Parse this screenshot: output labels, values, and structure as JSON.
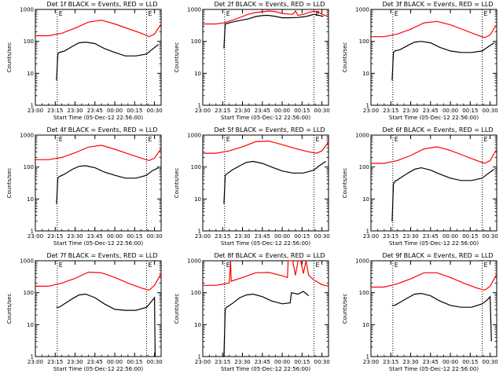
{
  "chart_data": [
    {
      "type": "line",
      "title": "Det 1f BLACK = Events, RED = LLD",
      "xlabel": "Start Time (05-Dec-12 22:56:00)",
      "ylabel": "Counts/sec",
      "x_ticks": [
        "23:00",
        "23:15",
        "23:30",
        "23:45",
        "00:00",
        "00:15",
        "00:30"
      ],
      "y_ticks": [
        "1",
        "10",
        "100",
        "1000"
      ],
      "xlim": [
        "23:00",
        "00:35"
      ],
      "ylim": [
        1,
        1000
      ],
      "y_scale": "log",
      "x_unit": "minutes after 23:00",
      "markers": [
        {
          "label": "E",
          "x": 16.5
        },
        {
          "label": "E",
          "x": 84
        }
      ],
      "series": [
        {
          "role": "LLD",
          "color": "#ff0000",
          "x": [
            0,
            10,
            20,
            30,
            40,
            50,
            60,
            70,
            80,
            86,
            90,
            95
          ],
          "y": [
            150,
            150,
            180,
            260,
            400,
            460,
            350,
            250,
            180,
            140,
            170,
            350
          ]
        },
        {
          "role": "Events",
          "color": "#000000",
          "x": [
            16,
            17,
            18,
            22,
            28,
            33,
            38,
            45,
            52,
            60,
            68,
            76,
            84,
            88,
            93
          ],
          "y": [
            6,
            40,
            45,
            50,
            70,
            90,
            95,
            85,
            60,
            45,
            35,
            35,
            40,
            55,
            80
          ]
        }
      ]
    },
    {
      "type": "line",
      "title": "Det 2f BLACK = Events, RED = LLD",
      "xlabel": "Start Time (05-Dec-12 22:56:00)",
      "ylabel": "Counts/sec",
      "x_ticks": [
        "23:00",
        "23:15",
        "23:30",
        "23:45",
        "00:00",
        "00:15",
        "00:30"
      ],
      "y_ticks": [
        "1",
        "10",
        "100",
        "1000"
      ],
      "xlim": [
        "23:00",
        "00:35"
      ],
      "ylim": [
        1,
        1000
      ],
      "y_scale": "log",
      "x_unit": "minutes after 23:00",
      "markers": [
        {
          "label": "E",
          "x": 16.5
        },
        {
          "label": "E",
          "x": 84
        }
      ],
      "series": [
        {
          "role": "LLD",
          "color": "#ff0000",
          "x": [
            0,
            10,
            16,
            20,
            25,
            30,
            34,
            40,
            46,
            50,
            55,
            60,
            64,
            68,
            70,
            72,
            76,
            80,
            84,
            88,
            91,
            95
          ],
          "y": [
            350,
            350,
            380,
            430,
            500,
            600,
            700,
            800,
            850,
            900,
            850,
            750,
            720,
            700,
            900,
            650,
            700,
            800,
            880,
            800,
            680,
            600
          ]
        },
        {
          "role": "Events",
          "color": "#000000",
          "x": [
            16,
            17,
            22,
            28,
            34,
            40,
            46,
            50,
            55,
            60,
            66,
            72,
            78,
            84,
            88,
            91
          ],
          "y": [
            60,
            350,
            400,
            450,
            500,
            600,
            650,
            650,
            600,
            550,
            550,
            560,
            600,
            700,
            650,
            600
          ]
        }
      ]
    },
    {
      "type": "line",
      "title": "Det 3f BLACK = Events, RED = LLD",
      "xlabel": "Start Time (05-Dec-12 22:56:00)",
      "ylabel": "Counts/sec",
      "x_ticks": [
        "23:00",
        "23:15",
        "23:30",
        "23:45",
        "00:00",
        "00:15",
        "00:30"
      ],
      "y_ticks": [
        "1",
        "10",
        "100",
        "1000"
      ],
      "xlim": [
        "23:00",
        "00:35"
      ],
      "ylim": [
        1,
        1000
      ],
      "y_scale": "log",
      "x_unit": "minutes after 23:00",
      "markers": [
        {
          "label": "E",
          "x": 16.5
        },
        {
          "label": "E",
          "x": 84
        }
      ],
      "series": [
        {
          "role": "LLD",
          "color": "#ff0000",
          "x": [
            0,
            10,
            20,
            30,
            40,
            50,
            60,
            70,
            80,
            86,
            90,
            95
          ],
          "y": [
            140,
            140,
            170,
            240,
            380,
            420,
            330,
            230,
            160,
            130,
            160,
            340
          ]
        },
        {
          "role": "Events",
          "color": "#000000",
          "x": [
            16,
            17,
            18,
            22,
            28,
            33,
            38,
            45,
            52,
            60,
            68,
            76,
            84,
            88,
            93
          ],
          "y": [
            6,
            45,
            50,
            55,
            75,
            95,
            100,
            90,
            65,
            50,
            45,
            45,
            50,
            65,
            90
          ]
        }
      ]
    },
    {
      "type": "line",
      "title": "Det 4f BLACK = Events, RED = LLD",
      "xlabel": "Start Time (05-Dec-12 22:56:00)",
      "ylabel": "Counts/sec",
      "x_ticks": [
        "23:00",
        "23:15",
        "23:30",
        "23:45",
        "00:00",
        "00:15",
        "00:30"
      ],
      "y_ticks": [
        "1",
        "10",
        "100",
        "1000"
      ],
      "xlim": [
        "23:00",
        "00:35"
      ],
      "ylim": [
        1,
        1000
      ],
      "y_scale": "log",
      "x_unit": "minutes after 23:00",
      "markers": [
        {
          "label": "E",
          "x": 16.5
        },
        {
          "label": "E",
          "x": 84
        }
      ],
      "series": [
        {
          "role": "LLD",
          "color": "#ff0000",
          "x": [
            0,
            10,
            20,
            30,
            40,
            50,
            60,
            70,
            80,
            86,
            90,
            95
          ],
          "y": [
            170,
            170,
            200,
            280,
            420,
            480,
            360,
            260,
            190,
            160,
            190,
            380
          ]
        },
        {
          "role": "Events",
          "color": "#000000",
          "x": [
            16,
            17,
            18,
            22,
            28,
            33,
            38,
            45,
            52,
            60,
            68,
            76,
            84,
            88,
            93
          ],
          "y": [
            7,
            45,
            50,
            60,
            85,
            105,
            110,
            95,
            70,
            55,
            45,
            45,
            55,
            75,
            95
          ]
        }
      ]
    },
    {
      "type": "line",
      "title": "Det 5f BLACK = Events, RED = LLD",
      "xlabel": "Start Time (05-Dec-12 22:56:00)",
      "ylabel": "Counts/sec",
      "x_ticks": [
        "23:00",
        "23:15",
        "23:30",
        "23:45",
        "00:00",
        "00:15",
        "00:30"
      ],
      "y_ticks": [
        "1",
        "10",
        "100",
        "1000"
      ],
      "xlim": [
        "23:00",
        "00:35"
      ],
      "ylim": [
        1,
        1000
      ],
      "y_scale": "log",
      "x_unit": "minutes after 23:00",
      "markers": [
        {
          "label": "E",
          "x": 16.5
        },
        {
          "label": "E",
          "x": 84
        }
      ],
      "series": [
        {
          "role": "LLD",
          "color": "#ff0000",
          "x": [
            0,
            10,
            20,
            30,
            40,
            50,
            60,
            70,
            80,
            86,
            90,
            95
          ],
          "y": [
            270,
            270,
            320,
            430,
            620,
            650,
            500,
            380,
            300,
            270,
            320,
            600
          ]
        },
        {
          "role": "Events",
          "color": "#000000",
          "x": [
            16,
            17,
            18,
            22,
            28,
            33,
            38,
            45,
            52,
            60,
            68,
            76,
            84,
            88,
            93
          ],
          "y": [
            7,
            55,
            60,
            80,
            110,
            140,
            150,
            130,
            100,
            75,
            65,
            65,
            80,
            110,
            150
          ]
        }
      ]
    },
    {
      "type": "line",
      "title": "Det 6f BLACK = Events, RED = LLD",
      "xlabel": "Start Time (05-Dec-12 22:56:00)",
      "ylabel": "Counts/sec",
      "x_ticks": [
        "23:00",
        "23:15",
        "23:30",
        "23:45",
        "00:00",
        "00:15",
        "00:30"
      ],
      "y_ticks": [
        "1",
        "10",
        "100",
        "1000"
      ],
      "xlim": [
        "23:00",
        "00:35"
      ],
      "ylim": [
        1,
        1000
      ],
      "y_scale": "log",
      "x_unit": "minutes after 23:00",
      "markers": [
        {
          "label": "E",
          "x": 16.5
        },
        {
          "label": "E",
          "x": 84
        }
      ],
      "series": [
        {
          "role": "LLD",
          "color": "#ff0000",
          "x": [
            0,
            10,
            20,
            30,
            40,
            50,
            60,
            70,
            80,
            86,
            90,
            95
          ],
          "y": [
            130,
            130,
            160,
            230,
            370,
            430,
            330,
            230,
            160,
            130,
            160,
            360
          ]
        },
        {
          "role": "Events",
          "color": "#000000",
          "x": [
            16,
            17,
            18,
            22,
            28,
            33,
            38,
            45,
            52,
            60,
            68,
            76,
            84,
            88,
            93
          ],
          "y": [
            2,
            30,
            35,
            45,
            65,
            85,
            95,
            80,
            60,
            45,
            38,
            38,
            45,
            60,
            85
          ]
        }
      ]
    },
    {
      "type": "line",
      "title": "Det 7f BLACK = Events, RED = LLD",
      "xlabel": "Start Time (05-Dec-12 22:56:00)",
      "ylabel": "Counts/sec",
      "x_ticks": [
        "23:00",
        "23:15",
        "23:30",
        "23:45",
        "00:00",
        "00:15",
        "00:30"
      ],
      "y_ticks": [
        "1",
        "10",
        "100",
        "1000"
      ],
      "xlim": [
        "23:00",
        "00:35"
      ],
      "ylim": [
        1,
        1000
      ],
      "y_scale": "log",
      "x_unit": "minutes after 23:00",
      "markers": [
        {
          "label": "E",
          "x": 16.5
        },
        {
          "label": "E",
          "x": 84
        }
      ],
      "series": [
        {
          "role": "LLD",
          "color": "#ff0000",
          "x": [
            0,
            10,
            20,
            30,
            40,
            50,
            60,
            70,
            80,
            86,
            90,
            95
          ],
          "y": [
            160,
            160,
            200,
            280,
            440,
            420,
            300,
            200,
            140,
            120,
            170,
            400
          ]
        },
        {
          "role": "Events",
          "color": "#000000",
          "x": [
            16,
            18,
            22,
            28,
            33,
            38,
            45,
            52,
            60,
            68,
            76,
            84,
            88,
            90,
            90.5
          ],
          "y": [
            35,
            35,
            45,
            65,
            85,
            90,
            70,
            45,
            30,
            28,
            28,
            35,
            55,
            70,
            1
          ]
        }
      ]
    },
    {
      "type": "line",
      "title": "Det 8f BLACK = Events, RED = LLD",
      "xlabel": "Start Time (05-Dec-12 22:56:00)",
      "ylabel": "Counts/sec",
      "x_ticks": [
        "23:00",
        "23:15",
        "23:30",
        "23:45",
        "00:00",
        "00:15",
        "00:30"
      ],
      "y_ticks": [
        "1",
        "10",
        "100",
        "1000"
      ],
      "xlim": [
        "23:00",
        "00:35"
      ],
      "ylim": [
        1,
        1000
      ],
      "y_scale": "log",
      "x_unit": "minutes after 23:00",
      "markers": [
        {
          "label": "E",
          "x": 16.5
        },
        {
          "label": "E",
          "x": 84
        }
      ],
      "series": [
        {
          "role": "LLD",
          "color": "#ff0000",
          "x": [
            0,
            10,
            20,
            21,
            21.5,
            30,
            40,
            50,
            60,
            64,
            64.5,
            68,
            70,
            72,
            74,
            76,
            78,
            80,
            84,
            90,
            95
          ],
          "y": [
            170,
            170,
            200,
            1000,
            230,
            300,
            420,
            430,
            340,
            300,
            1000,
            1000,
            350,
            1000,
            1000,
            400,
            1000,
            350,
            250,
            180,
            160
          ]
        },
        {
          "role": "Events",
          "color": "#000000",
          "x": [
            16,
            17,
            18,
            22,
            28,
            33,
            38,
            45,
            52,
            60,
            66,
            67,
            72,
            76,
            80
          ],
          "y": [
            1,
            30,
            35,
            45,
            70,
            85,
            90,
            75,
            55,
            45,
            48,
            100,
            90,
            110,
            80
          ]
        }
      ]
    },
    {
      "type": "line",
      "title": "Det 9f BLACK = Events, RED = LLD",
      "xlabel": "Start Time (05-Dec-12 22:56:00)",
      "ylabel": "Counts/sec",
      "x_ticks": [
        "23:00",
        "23:15",
        "23:30",
        "23:45",
        "00:00",
        "00:15",
        "00:30"
      ],
      "y_ticks": [
        "1",
        "10",
        "100",
        "1000"
      ],
      "xlim": [
        "23:00",
        "00:35"
      ],
      "ylim": [
        1,
        1000
      ],
      "y_scale": "log",
      "x_unit": "minutes after 23:00",
      "markers": [
        {
          "label": "E",
          "x": 16.5
        },
        {
          "label": "E",
          "x": 84
        }
      ],
      "series": [
        {
          "role": "LLD",
          "color": "#ff0000",
          "x": [
            0,
            10,
            20,
            30,
            40,
            50,
            60,
            70,
            80,
            86,
            90,
            95
          ],
          "y": [
            150,
            150,
            190,
            270,
            420,
            420,
            300,
            200,
            140,
            120,
            160,
            380
          ]
        },
        {
          "role": "Events",
          "color": "#000000",
          "x": [
            16,
            18,
            22,
            28,
            33,
            38,
            45,
            52,
            60,
            68,
            76,
            84,
            88,
            90,
            91
          ],
          "y": [
            40,
            40,
            50,
            70,
            90,
            95,
            80,
            55,
            40,
            35,
            35,
            45,
            60,
            75,
            3
          ]
        }
      ]
    }
  ]
}
